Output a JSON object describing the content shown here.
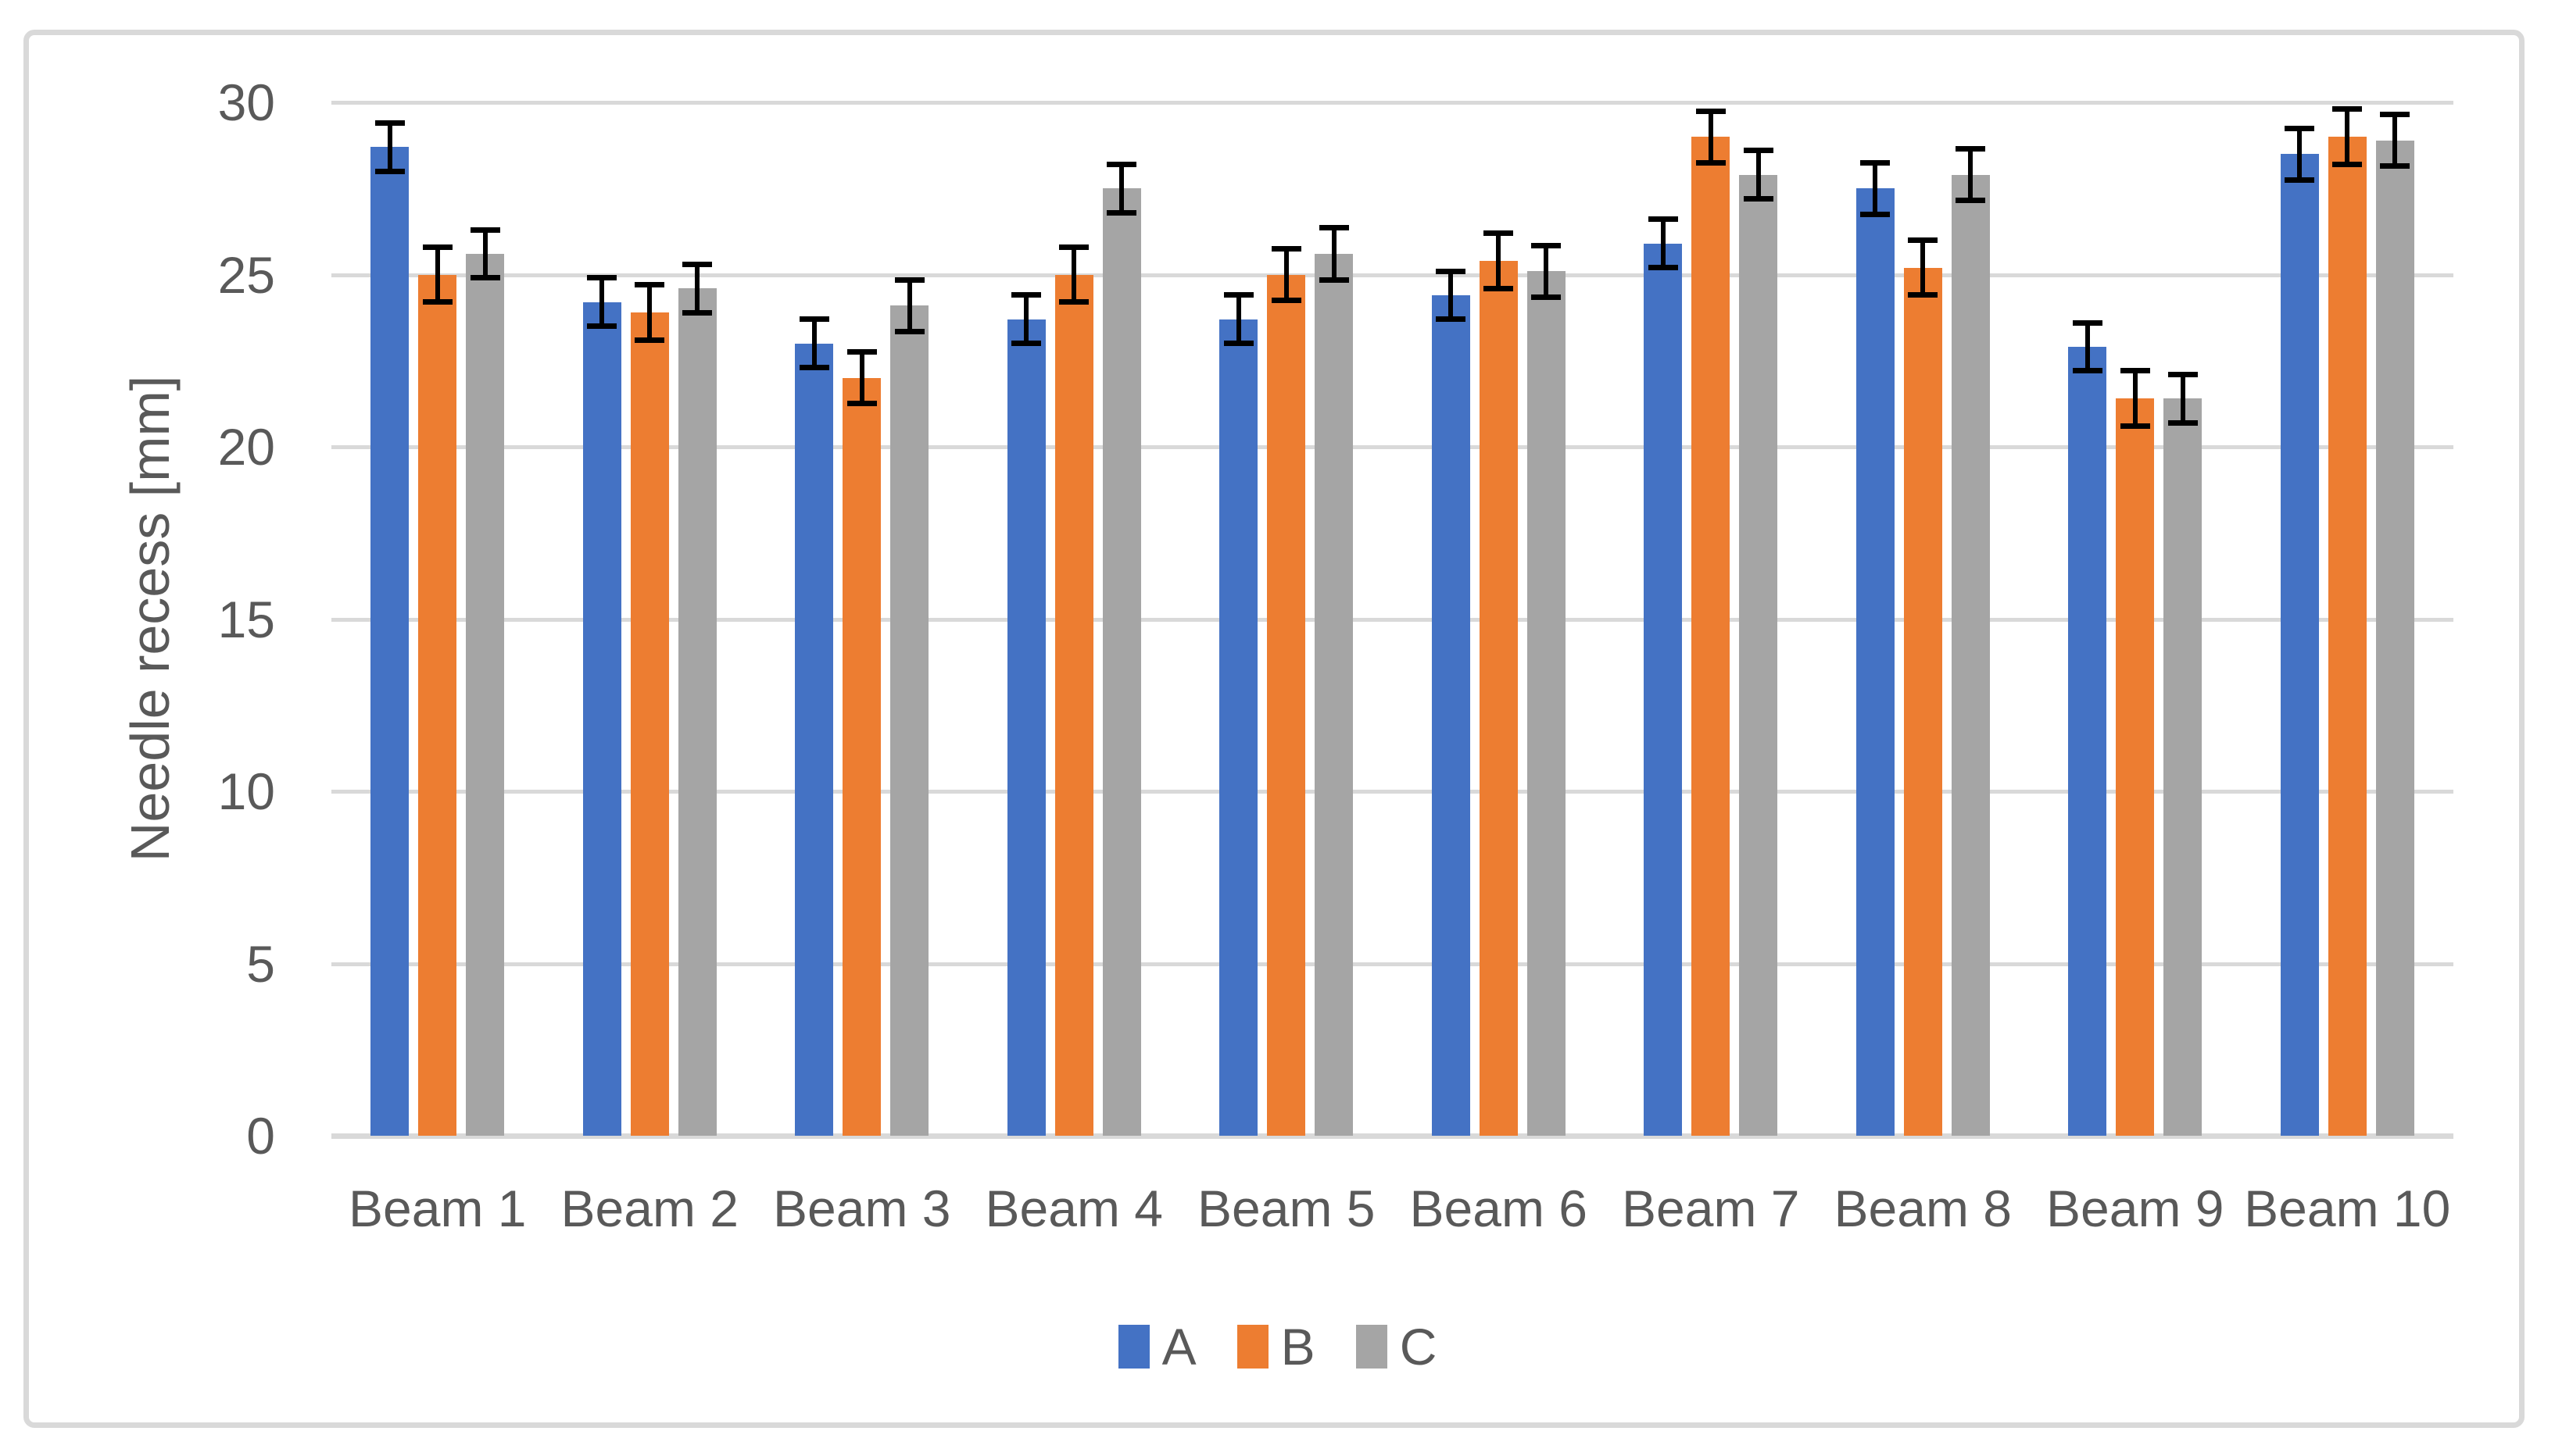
{
  "chart_data": {
    "type": "bar",
    "title": "",
    "xlabel": "",
    "ylabel": "Needle recess [mm]",
    "categories": [
      "Beam 1",
      "Beam 2",
      "Beam 3",
      "Beam 4",
      "Beam 5",
      "Beam 6",
      "Beam 7",
      "Beam 8",
      "Beam 9",
      "Beam 10"
    ],
    "series": [
      {
        "name": "A",
        "color": "#4472C4",
        "values": [
          28.7,
          24.2,
          23.0,
          23.7,
          23.7,
          24.4,
          25.9,
          27.5,
          22.9,
          28.5
        ],
        "errors": [
          0.7,
          0.7,
          0.7,
          0.7,
          0.7,
          0.7,
          0.7,
          0.75,
          0.7,
          0.75
        ]
      },
      {
        "name": "B",
        "color": "#ED7D31",
        "values": [
          25.0,
          23.9,
          22.0,
          25.0,
          25.0,
          25.4,
          29.0,
          25.2,
          21.4,
          29.0
        ],
        "errors": [
          0.8,
          0.8,
          0.75,
          0.8,
          0.75,
          0.8,
          0.75,
          0.8,
          0.8,
          0.8
        ]
      },
      {
        "name": "C",
        "color": "#A5A5A5",
        "values": [
          25.6,
          24.6,
          24.1,
          27.5,
          25.6,
          25.1,
          27.9,
          27.9,
          21.4,
          28.9
        ],
        "errors": [
          0.7,
          0.7,
          0.75,
          0.7,
          0.75,
          0.75,
          0.7,
          0.75,
          0.7,
          0.75
        ]
      }
    ],
    "ylim": [
      0,
      30
    ],
    "yticks": [
      0,
      5,
      10,
      15,
      20,
      25,
      30
    ],
    "grid": true,
    "legend_position": "bottom",
    "error_bars": true,
    "error_bar_color": "#000000",
    "text_color": "#595959",
    "gridline_color": "#D9D9D9",
    "chart_border_color": "#D9D9D9"
  }
}
